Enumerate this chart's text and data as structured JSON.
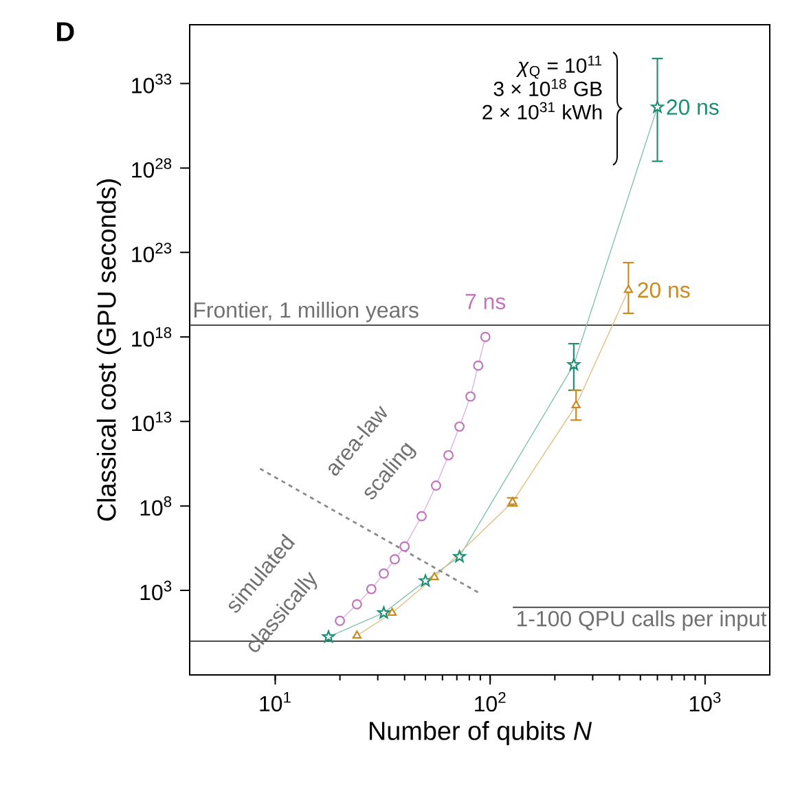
{
  "chart_data": {
    "type": "line",
    "title": "D",
    "xlabel": "Number of qubits *N*",
    "ylabel": "Classical cost (GPU seconds)",
    "log": "xy",
    "xlim": [
      4,
      2000
    ],
    "ylim": [
      0.01,
      3e+36
    ],
    "xticks": [
      {
        "value": 10,
        "label": "10$^{1}$"
      },
      {
        "value": 100,
        "label": "10$^{2}$"
      },
      {
        "value": 1000,
        "label": "10$^{3}$"
      }
    ],
    "yticks": [
      {
        "value": 1000.0,
        "label": "10$^{3}$"
      },
      {
        "value": 100000000.0,
        "label": "10$^{8}$"
      },
      {
        "value": 10000000000000.0,
        "label": "10$^{13}$"
      },
      {
        "value": 1e+18,
        "label": "10$^{18}$"
      },
      {
        "value": 1e+23,
        "label": "10$^{23}$"
      },
      {
        "value": 1e+28,
        "label": "10$^{28}$"
      },
      {
        "value": 1e+33,
        "label": "10$^{33}$"
      }
    ],
    "series": [
      {
        "name": "7 ns",
        "color": "#c374bd",
        "marker": "circle",
        "x": [
          20,
          24,
          28,
          32,
          36,
          40,
          48,
          56,
          64,
          72,
          81,
          88,
          95
        ],
        "values": [
          16,
          150,
          1200,
          10000.0,
          70000.0,
          400000.0,
          25000000.0,
          1600000000.0,
          100000000000.0,
          5000000000000.0,
          300000000000000.0,
          2e+16,
          1e+18
        ]
      },
      {
        "name": "20 ns",
        "color": "#1b8f74",
        "marker": "star",
        "x": [
          17.7,
          32,
          50,
          72,
          245,
          600
        ],
        "values": [
          1.8,
          47,
          3700.0,
          100000.0,
          2.3e+16,
          4e+31
        ],
        "errors": [
          null,
          null,
          null,
          null,
          [
            700000000000000.0,
            4e+17
          ],
          [
            2.5e+28,
            3e+34
          ]
        ]
      },
      {
        "name": "20 ns",
        "color": "#c98a1f",
        "marker": "triangle",
        "x": [
          24,
          35,
          55,
          127,
          251,
          440
        ],
        "values": [
          2.1,
          47,
          6000.0,
          170000000.0,
          90000000000000.0,
          6e+20
        ],
        "errors": [
          null,
          null,
          null,
          [
            100000000.0,
            300000000.0
          ],
          [
            12000000000000.0,
            700000000000000.0
          ],
          [
            2.5e+19,
            2.5e+22
          ]
        ]
      },
      {
        "type": "line",
        "color": "#8a8a8a",
        "line_style": "dashed",
        "marker": "none",
        "x": [
          8.5,
          89
        ],
        "values": [
          16000000000.0,
          700
        ]
      }
    ],
    "ref_lines": [
      {
        "axis": "y",
        "value": 5e+18,
        "label": "Frontier, 1 million years",
        "color": "#333333"
      },
      {
        "axis": "y",
        "value": 100,
        "label": "1-100 QPU calls per input",
        "color": "#333333"
      },
      {
        "axis": "y",
        "value": 1,
        "color": "#333333"
      }
    ],
    "annotations": [
      "*χ*$_{Q}$ = 10$^{11}$",
      "3 × 10$^{18}$ GB",
      "2 × 10$^{31}$ kWh",
      "simulated",
      "classically",
      "area-law",
      "scaling"
    ]
  }
}
